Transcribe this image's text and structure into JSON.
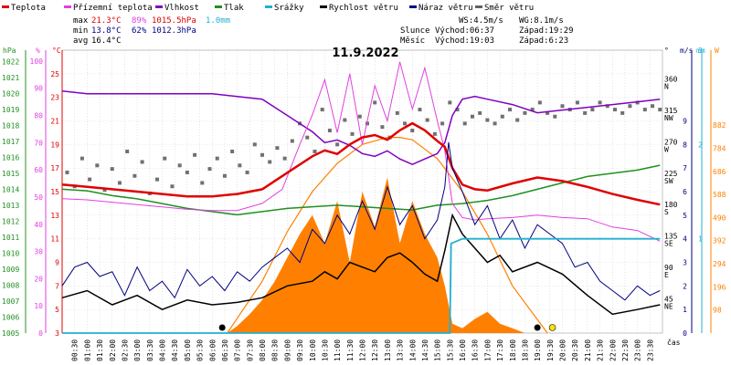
{
  "chart_data": {
    "type": "line",
    "title": "11.9.2022",
    "legend": [
      {
        "name": "Teplota",
        "color": "#e00000"
      },
      {
        "name": "Přízemní teplota",
        "color": "#e040e0"
      },
      {
        "name": "Vlhkost",
        "color": "#8000c0"
      },
      {
        "name": "Tlak",
        "color": "#209020"
      },
      {
        "name": "Srážky",
        "color": "#20b0d0"
      },
      {
        "name": "Rychlost větru",
        "color": "#000000"
      },
      {
        "name": "Náraz větru",
        "color": "#000080"
      },
      {
        "name": "Směr větru",
        "color": "#606060"
      }
    ],
    "stats": {
      "max": {
        "label": "max",
        "temp": "21.3°C",
        "hum": "89%",
        "press": "1015.5hPa",
        "rain": "1.0mm"
      },
      "min": {
        "label": "min",
        "temp": "13.8°C",
        "hum": "62%",
        "press": "1012.3hPa"
      },
      "avg": {
        "label": "avg",
        "temp": "16.4°C"
      },
      "ws": "WS:4.5m/s",
      "wg": "WG:8.1m/s",
      "sun": {
        "label": "Slunce",
        "rise": "Východ:06:37",
        "set": "Západ:19:29"
      },
      "moon": {
        "label": "Měsíc",
        "rise": "Východ:19:03",
        "set": "Západ:6:23"
      }
    },
    "axes": {
      "hpa": {
        "unit": "hPa",
        "ticks": [
          "1022",
          "1021",
          "1020",
          "1019",
          "1018",
          "1017",
          "1016",
          "1015",
          "1014",
          "1013",
          "1012",
          "1011",
          "1010",
          "1009",
          "1008",
          "1007",
          "1006",
          "1005"
        ],
        "range": [
          1005,
          1022.7
        ],
        "color": "#209020"
      },
      "pct": {
        "unit": "%",
        "ticks": [
          "100",
          "90",
          "80",
          "70",
          "60",
          "50",
          "40",
          "30",
          "20",
          "10",
          "0"
        ],
        "range": [
          0,
          104
        ],
        "color": "#e040e0"
      },
      "degc": {
        "unit": "°C",
        "ticks": [
          "25",
          "23",
          "21",
          "19",
          "17",
          "15",
          "13",
          "11",
          "9",
          "7",
          "5",
          "3"
        ],
        "range": [
          3,
          27
        ],
        "color": "#e00000"
      },
      "dir": {
        "unit": "°",
        "ticks": [
          {
            "v": 360,
            "l": "360",
            "c": "N"
          },
          {
            "v": 315,
            "l": "315",
            "c": "NW"
          },
          {
            "v": 270,
            "l": "270",
            "c": "W"
          },
          {
            "v": 225,
            "l": "225",
            "c": "SW"
          },
          {
            "v": 180,
            "l": "180",
            "c": "S"
          },
          {
            "v": 135,
            "l": "135",
            "c": "SE"
          },
          {
            "v": 90,
            "l": "90",
            "c": "E"
          },
          {
            "v": 45,
            "l": "45",
            "c": "NE"
          }
        ],
        "range": [
          0,
          405
        ],
        "color": "#000000"
      },
      "ms": {
        "unit": "m/s",
        "ticks": [
          "9",
          "8",
          "7",
          "6",
          "5",
          "4",
          "3",
          "2",
          "1",
          "0"
        ],
        "range": [
          0,
          12
        ],
        "color": "#000080"
      },
      "mm": {
        "unit": "mm",
        "ticks": [
          "3",
          "2",
          "1"
        ],
        "range": [
          0,
          3.0
        ],
        "color": "#20b0d0"
      },
      "w": {
        "unit": "W",
        "ticks": [
          "882",
          "784",
          "686",
          "588",
          "490",
          "392",
          "294",
          "196",
          "98"
        ],
        "range": [
          0,
          1200
        ],
        "color": "#ff8000"
      },
      "time": {
        "unit": "čas",
        "ticks": [
          "00:30",
          "01:00",
          "01:30",
          "02:00",
          "02:30",
          "03:00",
          "03:30",
          "04:00",
          "04:30",
          "05:00",
          "05:30",
          "06:00",
          "06:30",
          "07:00",
          "07:30",
          "08:00",
          "08:30",
          "09:00",
          "09:30",
          "10:00",
          "10:30",
          "11:00",
          "11:30",
          "12:00",
          "12:30",
          "13:00",
          "13:30",
          "14:00",
          "14:30",
          "15:00",
          "15:30",
          "16:00",
          "16:30",
          "17:00",
          "17:30",
          "18:00",
          "18:30",
          "19:00",
          "19:30",
          "20:00",
          "20:30",
          "21:00",
          "21:30",
          "22:00",
          "22:30",
          "23:00",
          "23:30"
        ],
        "range": [
          0,
          24
        ]
      }
    },
    "series": {
      "temperature": {
        "unit": "°C",
        "x": [
          0,
          1,
          2,
          3,
          4,
          5,
          6,
          7,
          8,
          9,
          10,
          10.5,
          11,
          11.5,
          12,
          12.5,
          13,
          13.5,
          14,
          14.5,
          15,
          15.3,
          15.6,
          16,
          16.5,
          17,
          18,
          19,
          20,
          21,
          22,
          23,
          23.9
        ],
        "y": [
          15.6,
          15.4,
          15.2,
          15.0,
          14.8,
          14.6,
          14.6,
          14.8,
          15.2,
          16.6,
          18.0,
          18.5,
          18.2,
          19.0,
          19.6,
          19.8,
          19.4,
          20.2,
          20.8,
          20.2,
          19.3,
          18.8,
          17.0,
          15.6,
          15.2,
          15.1,
          15.7,
          16.2,
          15.9,
          15.4,
          14.8,
          14.3,
          13.9
        ]
      },
      "ground_temperature": {
        "unit": "°C",
        "x": [
          0,
          1,
          2,
          3,
          4,
          5,
          6,
          7,
          8,
          8.8,
          9.5,
          10,
          10.5,
          11,
          11.5,
          12,
          12.5,
          13,
          13.5,
          14,
          14.5,
          15,
          15.3,
          15.6,
          16,
          16.5,
          17,
          18,
          19,
          20,
          21,
          22,
          23,
          23.9
        ],
        "y": [
          14.4,
          14.3,
          14.1,
          13.9,
          13.7,
          13.5,
          13.4,
          13.4,
          14.0,
          15.2,
          19.0,
          21.5,
          24.5,
          20.0,
          25.0,
          19.0,
          24.0,
          21.0,
          26.0,
          22.0,
          25.5,
          21.0,
          18.5,
          14.0,
          12.8,
          12.6,
          12.7,
          12.8,
          13.0,
          12.8,
          12.7,
          12.0,
          11.7,
          10.8
        ]
      },
      "humidity": {
        "unit": "%",
        "x": [
          0,
          1,
          2,
          3,
          4,
          5,
          6,
          7,
          8,
          9,
          10,
          10.5,
          11,
          11.5,
          12,
          12.5,
          13,
          13.5,
          14,
          14.5,
          15,
          15.3,
          15.6,
          16,
          16.5,
          17,
          18,
          19,
          20,
          21,
          22,
          23,
          23.9
        ],
        "y": [
          89,
          88,
          88,
          88,
          88,
          88,
          88,
          87,
          86,
          80,
          74,
          70,
          71,
          69,
          66,
          65,
          67,
          64,
          62,
          64,
          66,
          70,
          80,
          86,
          87,
          86,
          84,
          81,
          82,
          83,
          84,
          85,
          86
        ]
      },
      "pressure": {
        "unit": "hPa",
        "x": [
          0,
          1,
          2,
          3,
          4,
          5,
          6,
          7,
          8,
          9,
          10,
          11,
          12,
          13,
          14,
          15,
          16,
          17,
          18,
          19,
          20,
          21,
          22,
          23,
          23.9
        ],
        "y": [
          1014.0,
          1013.9,
          1013.6,
          1013.4,
          1013.1,
          1012.8,
          1012.6,
          1012.4,
          1012.6,
          1012.8,
          1012.9,
          1013.0,
          1012.9,
          1012.8,
          1012.7,
          1013.0,
          1013.1,
          1013.3,
          1013.6,
          1014.0,
          1014.4,
          1014.8,
          1015.0,
          1015.2,
          1015.5
        ]
      },
      "rain": {
        "unit": "mm",
        "x": [
          0,
          15.5,
          15.55,
          16,
          23.9
        ],
        "y": [
          0,
          0,
          0.95,
          1.0,
          1.0
        ]
      },
      "wind_speed": {
        "unit": "m/s",
        "x": [
          0,
          1,
          2,
          3,
          4,
          5,
          6,
          7,
          8,
          9,
          10,
          10.5,
          11,
          11.5,
          12,
          12.5,
          13,
          13.5,
          14,
          14.5,
          15,
          15.3,
          15.6,
          16,
          16.5,
          17,
          17.5,
          18,
          19,
          20,
          21,
          22,
          23,
          23.9
        ],
        "y": [
          1.5,
          1.8,
          1.2,
          1.6,
          1.0,
          1.4,
          1.2,
          1.3,
          1.5,
          2.0,
          2.2,
          2.6,
          2.3,
          3.0,
          2.8,
          2.6,
          3.2,
          3.4,
          3.0,
          2.5,
          2.2,
          3.5,
          5.0,
          4.2,
          3.6,
          3.0,
          3.3,
          2.6,
          3.0,
          2.5,
          1.6,
          0.8,
          1.0,
          1.2
        ]
      },
      "wind_gust": {
        "unit": "m/s",
        "x": [
          0,
          0.5,
          1,
          1.5,
          2,
          2.5,
          3,
          3.5,
          4,
          4.5,
          5,
          5.5,
          6,
          6.5,
          7,
          7.5,
          8,
          8.5,
          9,
          9.5,
          10,
          10.5,
          11,
          11.5,
          12,
          12.5,
          13,
          13.5,
          14,
          14.5,
          15,
          15.3,
          15.45,
          15.6,
          16,
          16.5,
          17,
          17.5,
          18,
          18.5,
          19,
          19.5,
          20,
          20.5,
          21,
          21.5,
          22,
          22.5,
          23,
          23.5,
          23.9
        ],
        "y": [
          2.0,
          2.8,
          3.0,
          2.4,
          2.6,
          1.6,
          2.8,
          1.8,
          2.2,
          1.5,
          2.7,
          2.0,
          2.4,
          1.8,
          2.6,
          2.2,
          2.8,
          3.2,
          3.6,
          3.0,
          4.4,
          3.8,
          5.0,
          4.2,
          5.6,
          4.4,
          6.2,
          4.6,
          5.4,
          4.0,
          4.8,
          6.2,
          8.1,
          7.0,
          6.0,
          4.6,
          5.4,
          4.0,
          4.8,
          3.6,
          4.6,
          4.2,
          3.8,
          2.8,
          3.0,
          2.2,
          1.8,
          1.4,
          2.0,
          1.6,
          1.8
        ]
      },
      "solar": {
        "unit": "W",
        "x": [
          6.6,
          7,
          7.5,
          8,
          8.5,
          9,
          9.5,
          10,
          10.5,
          11,
          11.5,
          12,
          12.5,
          13,
          13.5,
          14,
          14.5,
          15,
          15.3,
          15.6,
          16,
          16.5,
          17,
          17.5,
          18,
          18.5
        ],
        "y": [
          0,
          30,
          80,
          140,
          220,
          320,
          420,
          500,
          380,
          560,
          300,
          600,
          450,
          660,
          380,
          560,
          420,
          320,
          200,
          40,
          20,
          60,
          90,
          40,
          20,
          0
        ]
      },
      "solar_theoretical": {
        "unit": "W",
        "x": [
          6.6,
          8,
          9,
          10,
          11,
          12,
          13,
          13.5,
          14,
          15,
          16,
          17,
          18,
          19.4
        ],
        "y": [
          0,
          220,
          430,
          600,
          720,
          800,
          830,
          830,
          820,
          740,
          600,
          420,
          200,
          0
        ]
      },
      "wind_direction": {
        "unit": "°",
        "x": [
          0.2,
          0.5,
          0.8,
          1.1,
          1.4,
          1.7,
          2.0,
          2.3,
          2.6,
          2.9,
          3.2,
          3.5,
          3.8,
          4.1,
          4.4,
          4.7,
          5.0,
          5.3,
          5.6,
          5.9,
          6.2,
          6.5,
          6.8,
          7.1,
          7.4,
          7.7,
          8.0,
          8.3,
          8.6,
          8.9,
          9.2,
          9.5,
          9.8,
          10.1,
          10.4,
          10.7,
          11.0,
          11.3,
          11.6,
          11.9,
          12.2,
          12.5,
          12.8,
          13.1,
          13.4,
          13.7,
          14.0,
          14.3,
          14.6,
          14.9,
          15.2,
          15.5,
          15.8,
          16.1,
          16.4,
          16.7,
          17.0,
          17.3,
          17.6,
          17.9,
          18.2,
          18.5,
          18.8,
          19.1,
          19.4,
          19.7,
          20.0,
          20.3,
          20.6,
          20.9,
          21.2,
          21.5,
          21.8,
          22.1,
          22.4,
          22.7,
          23.0,
          23.3,
          23.6,
          23.9
        ],
        "y": [
          230,
          210,
          250,
          220,
          240,
          205,
          235,
          215,
          260,
          225,
          245,
          200,
          220,
          250,
          210,
          240,
          230,
          255,
          215,
          235,
          250,
          225,
          260,
          240,
          230,
          270,
          255,
          245,
          265,
          250,
          275,
          300,
          280,
          260,
          320,
          290,
          270,
          305,
          285,
          310,
          300,
          330,
          295,
          280,
          315,
          300,
          290,
          320,
          305,
          285,
          300,
          330,
          320,
          300,
          310,
          315,
          305,
          300,
          310,
          320,
          305,
          315,
          320,
          330,
          315,
          310,
          325,
          320,
          330,
          315,
          320,
          330,
          325,
          320,
          315,
          325,
          330,
          320,
          325,
          320
        ]
      }
    },
    "markers": [
      {
        "name": "moonset",
        "time": 6.4
      },
      {
        "name": "moonrise",
        "time": 19.0
      },
      {
        "name": "sun",
        "time": 19.6
      }
    ]
  }
}
